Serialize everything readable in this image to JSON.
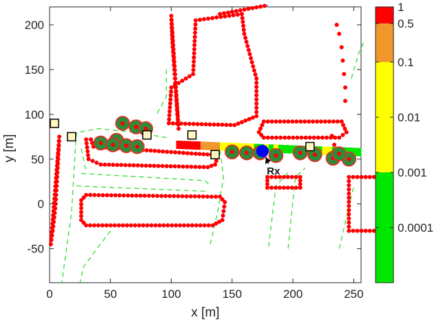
{
  "chart_data": {
    "type": "scatter",
    "title": "",
    "xlabel": "x [m]",
    "ylabel": "y [m]",
    "xlim": [
      0,
      256
    ],
    "ylim": [
      -88,
      220
    ],
    "xticks": [
      0,
      50,
      100,
      150,
      200,
      250
    ],
    "yticks": [
      -50,
      0,
      50,
      100,
      150,
      200
    ],
    "grid": false,
    "colorbar": {
      "scale": "log",
      "tick_labels": [
        "1",
        "0.5",
        "0.1",
        "0.01",
        "0.001",
        "0.0001"
      ],
      "bands": [
        {
          "from": 1.0,
          "to": 0.5,
          "color": "#ff0000"
        },
        {
          "from": 0.5,
          "to": 0.1,
          "color": "#f0962a"
        },
        {
          "from": 0.1,
          "to": 0.001,
          "color": "#ffff00"
        },
        {
          "from": 0.001,
          "to": 1e-05,
          "color": "#00e600"
        }
      ]
    },
    "receiver": {
      "label": "Rx",
      "x": 175,
      "y": 59,
      "color": "#0000ff"
    },
    "arrow_from": [
      180,
      45
    ],
    "annotations": [
      {
        "text": "Rx",
        "x": 184,
        "y": 33
      }
    ],
    "colors": {
      "scatterer": "#ff0000",
      "tree_fill": "#2e8b3a",
      "tree_edge": "#ff2020",
      "edge_line": "#2040ff",
      "road": "#33dd33",
      "marker_box": "#000000",
      "marker_fill": "#fff7c0"
    },
    "building_outlines": [
      {
        "name": "left-block",
        "points": [
          [
            30,
            72
          ],
          [
            32,
            50
          ],
          [
            42,
            44
          ],
          [
            130,
            41
          ],
          [
            136,
            44
          ],
          [
            138,
            52
          ],
          [
            133,
            55
          ],
          [
            120,
            56
          ],
          [
            36,
            64
          ],
          [
            34,
            72
          ]
        ]
      },
      {
        "name": "lower-left-block",
        "points": [
          [
            30,
            10
          ],
          [
            140,
            8
          ],
          [
            144,
            2
          ],
          [
            142,
            -18
          ],
          [
            134,
            -24
          ],
          [
            30,
            -24
          ],
          [
            26,
            -18
          ],
          [
            26,
            4
          ]
        ]
      },
      {
        "name": "tall-tower",
        "points": [
          [
            98,
            90
          ],
          [
            100,
            130
          ],
          [
            118,
            145
          ],
          [
            120,
            205
          ],
          [
            158,
            212
          ],
          [
            160,
            190
          ],
          [
            170,
            140
          ],
          [
            170,
            98
          ],
          [
            152,
            88
          ]
        ]
      },
      {
        "name": "top-bar",
        "points": [
          [
            140,
            212
          ],
          [
            180,
            222
          ]
        ]
      },
      {
        "name": "upper-mid-block",
        "points": [
          [
            176,
            92
          ],
          [
            240,
            92
          ],
          [
            244,
            80
          ],
          [
            238,
            74
          ],
          [
            176,
            74
          ],
          [
            172,
            80
          ]
        ]
      },
      {
        "name": "lower-mid-block",
        "points": [
          [
            179,
            30
          ],
          [
            206,
            30
          ],
          [
            206,
            18
          ],
          [
            179,
            18
          ]
        ]
      },
      {
        "name": "right-block",
        "points": [
          [
            246,
            30
          ],
          [
            270,
            30
          ],
          [
            270,
            -30
          ],
          [
            246,
            -30
          ]
        ]
      }
    ],
    "scatter_chains": [
      {
        "name": "left-wall",
        "points": [
          [
            8,
            75
          ],
          [
            7,
            50
          ],
          [
            6,
            25
          ],
          [
            5,
            0
          ],
          [
            3,
            -25
          ],
          [
            1,
            -45
          ]
        ]
      },
      {
        "name": "middle-top-wall",
        "points": [
          [
            100,
            210
          ],
          [
            101,
            180
          ],
          [
            102,
            160
          ],
          [
            103,
            140
          ],
          [
            104,
            120
          ],
          [
            105,
            100
          ],
          [
            106,
            84
          ]
        ]
      }
    ],
    "trees": [
      {
        "x": 55,
        "y": 71
      },
      {
        "x": 60,
        "y": 90
      },
      {
        "x": 71,
        "y": 86
      },
      {
        "x": 79,
        "y": 84
      },
      {
        "x": 42,
        "y": 68
      },
      {
        "x": 52,
        "y": 66
      },
      {
        "x": 63,
        "y": 65
      },
      {
        "x": 72,
        "y": 64
      },
      {
        "x": 150,
        "y": 58
      },
      {
        "x": 162,
        "y": 57
      },
      {
        "x": 173,
        "y": 57
      },
      {
        "x": 186,
        "y": 54
      },
      {
        "x": 206,
        "y": 57
      },
      {
        "x": 218,
        "y": 55
      },
      {
        "x": 233,
        "y": 51
      },
      {
        "x": 246,
        "y": 50
      },
      {
        "x": 238,
        "y": 56
      }
    ],
    "boxes": [
      {
        "x": 4,
        "y": 90
      },
      {
        "x": 18,
        "y": 75
      },
      {
        "x": 80,
        "y": 77
      },
      {
        "x": 117,
        "y": 77
      },
      {
        "x": 136,
        "y": 55
      },
      {
        "x": 214,
        "y": 64
      }
    ],
    "ray_strip": [
      {
        "x": 104,
        "v": 0.8
      },
      {
        "x": 108,
        "v": 0.9
      },
      {
        "x": 112,
        "v": 0.7
      },
      {
        "x": 116,
        "v": 0.9
      },
      {
        "x": 120,
        "v": 0.6
      },
      {
        "x": 124,
        "v": 0.3
      },
      {
        "x": 128,
        "v": 0.2
      },
      {
        "x": 132,
        "v": 0.15
      },
      {
        "x": 136,
        "v": 0.2
      },
      {
        "x": 140,
        "v": 0.05
      },
      {
        "x": 144,
        "v": 0.04
      },
      {
        "x": 148,
        "v": 0.03
      },
      {
        "x": 152,
        "v": 0.002
      },
      {
        "x": 156,
        "v": 0.003
      },
      {
        "x": 160,
        "v": 0.05
      },
      {
        "x": 164,
        "v": 0.002
      },
      {
        "x": 168,
        "v": 0.0005
      },
      {
        "x": 172,
        "v": 0.0003
      },
      {
        "x": 176,
        "v": 0.05
      },
      {
        "x": 180,
        "v": 0.0004
      },
      {
        "x": 184,
        "v": 0.003
      },
      {
        "x": 188,
        "v": 0.0004
      },
      {
        "x": 192,
        "v": 0.0003
      },
      {
        "x": 196,
        "v": 0.0005
      },
      {
        "x": 200,
        "v": 0.0004
      },
      {
        "x": 204,
        "v": 0.0003
      },
      {
        "x": 208,
        "v": 0.0004
      },
      {
        "x": 212,
        "v": 0.0003
      },
      {
        "x": 216,
        "v": 0.0004
      },
      {
        "x": 220,
        "v": 0.0003
      },
      {
        "x": 224,
        "v": 0.003
      },
      {
        "x": 228,
        "v": 0.004
      },
      {
        "x": 232,
        "v": 0.0004
      },
      {
        "x": 236,
        "v": 0.003
      },
      {
        "x": 240,
        "v": 0.0003
      },
      {
        "x": 244,
        "v": 0.0003
      },
      {
        "x": 248,
        "v": 0.0002
      },
      {
        "x": 252,
        "v": 0.0002
      }
    ]
  }
}
